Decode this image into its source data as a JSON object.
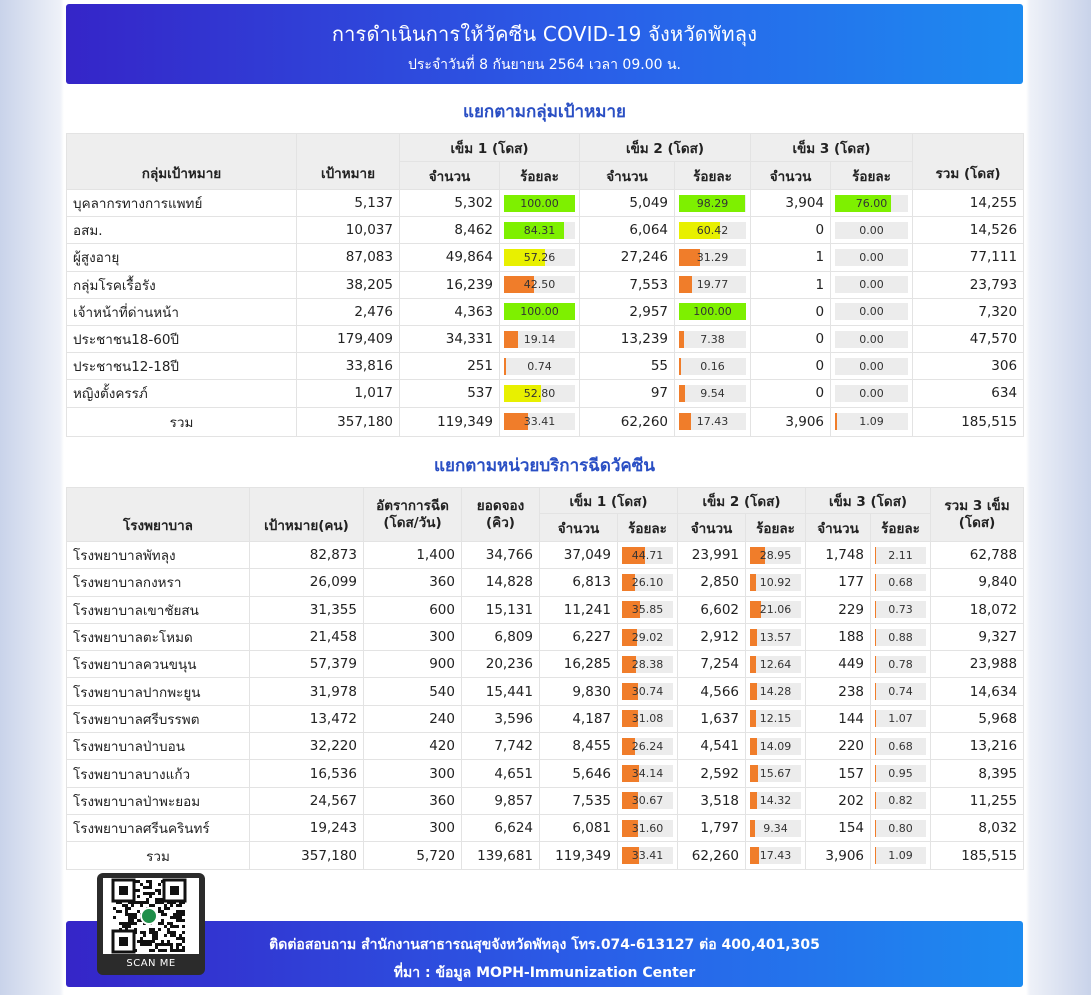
{
  "header": {
    "title": "การดำเนินการให้วัคซีน COVID-19 จังหวัดพัทลุง",
    "subtitle": "ประจำวันที่ 8 กันยายน 2564 เวลา 09.00 น."
  },
  "colors": {
    "green": "#7ef000",
    "yellow": "#e8f000",
    "orange": "#f07d2a"
  },
  "group_section": {
    "title": "แยกตามกลุ่มเป้าหมาย",
    "headers": {
      "group": "กลุ่มเป้าหมาย",
      "target": "เป้าหมาย",
      "dose1": "เข็ม 1 (โดส)",
      "dose2": "เข็ม 2 (โดส)",
      "dose3": "เข็ม 3 (โดส)",
      "count": "จำนวน",
      "percent": "ร้อยละ",
      "total": "รวม (โดส)"
    },
    "rows": [
      {
        "name": "บุคลากรทางการแพทย์",
        "target": "5,137",
        "d1": "5,302",
        "p1": 100.0,
        "d2": "5,049",
        "p2": 98.29,
        "d3": "3,904",
        "p3": 76.0,
        "total": "14,255"
      },
      {
        "name": "อสม.",
        "target": "10,037",
        "d1": "8,462",
        "p1": 84.31,
        "d2": "6,064",
        "p2": 60.42,
        "d3": "0",
        "p3": 0.0,
        "total": "14,526"
      },
      {
        "name": "ผู้สูงอายุ",
        "target": "87,083",
        "d1": "49,864",
        "p1": 57.26,
        "d2": "27,246",
        "p2": 31.29,
        "d3": "1",
        "p3": 0.0,
        "total": "77,111"
      },
      {
        "name": "กลุ่มโรคเรื้อรัง",
        "target": "38,205",
        "d1": "16,239",
        "p1": 42.5,
        "d2": "7,553",
        "p2": 19.77,
        "d3": "1",
        "p3": 0.0,
        "total": "23,793"
      },
      {
        "name": "เจ้าหน้าที่ด่านหน้า",
        "target": "2,476",
        "d1": "4,363",
        "p1": 100.0,
        "d2": "2,957",
        "p2": 100.0,
        "d3": "0",
        "p3": 0.0,
        "total": "7,320"
      },
      {
        "name": "ประชาชน18-60ปี",
        "target": "179,409",
        "d1": "34,331",
        "p1": 19.14,
        "d2": "13,239",
        "p2": 7.38,
        "d3": "0",
        "p3": 0.0,
        "total": "47,570"
      },
      {
        "name": "ประชาชน12-18ปี",
        "target": "33,816",
        "d1": "251",
        "p1": 0.74,
        "d2": "55",
        "p2": 0.16,
        "d3": "0",
        "p3": 0.0,
        "total": "306"
      },
      {
        "name": "หญิงตั้งครรภ์",
        "target": "1,017",
        "d1": "537",
        "p1": 52.8,
        "d2": "97",
        "p2": 9.54,
        "d3": "0",
        "p3": 0.0,
        "total": "634"
      }
    ],
    "total_row": {
      "name": "รวม",
      "target": "357,180",
      "d1": "119,349",
      "p1": 33.41,
      "d2": "62,260",
      "p2": 17.43,
      "d3": "3,906",
      "p3": 1.09,
      "total": "185,515"
    }
  },
  "hospital_section": {
    "title": "แยกตามหน่วยบริการฉีดวัคซีน",
    "headers": {
      "hospital": "โรงพยาบาล",
      "target": "เป้าหมาย(คน)",
      "rate": "อัตราการฉีด (โดส/วัน)",
      "booking": "ยอดจอง (คิว)",
      "dose1": "เข็ม 1 (โดส)",
      "dose2": "เข็ม 2 (โดส)",
      "dose3": "เข็ม 3 (โดส)",
      "count": "จำนวน",
      "percent": "ร้อยละ",
      "total": "รวม 3 เข็ม (โดส)"
    },
    "rows": [
      {
        "name": "โรงพยาบาลพัทลุง",
        "target": "82,873",
        "rate": "1,400",
        "booking": "34,766",
        "d1": "37,049",
        "p1": 44.71,
        "d2": "23,991",
        "p2": 28.95,
        "d3": "1,748",
        "p3": 2.11,
        "total": "62,788"
      },
      {
        "name": "โรงพยาบาลกงหรา",
        "target": "26,099",
        "rate": "360",
        "booking": "14,828",
        "d1": "6,813",
        "p1": 26.1,
        "d2": "2,850",
        "p2": 10.92,
        "d3": "177",
        "p3": 0.68,
        "total": "9,840"
      },
      {
        "name": "โรงพยาบาลเขาชัยสน",
        "target": "31,355",
        "rate": "600",
        "booking": "15,131",
        "d1": "11,241",
        "p1": 35.85,
        "d2": "6,602",
        "p2": 21.06,
        "d3": "229",
        "p3": 0.73,
        "total": "18,072"
      },
      {
        "name": "โรงพยาบาลตะโหมด",
        "target": "21,458",
        "rate": "300",
        "booking": "6,809",
        "d1": "6,227",
        "p1": 29.02,
        "d2": "2,912",
        "p2": 13.57,
        "d3": "188",
        "p3": 0.88,
        "total": "9,327"
      },
      {
        "name": "โรงพยาบาลควนขนุน",
        "target": "57,379",
        "rate": "900",
        "booking": "20,236",
        "d1": "16,285",
        "p1": 28.38,
        "d2": "7,254",
        "p2": 12.64,
        "d3": "449",
        "p3": 0.78,
        "total": "23,988"
      },
      {
        "name": "โรงพยาบาลปากพะยูน",
        "target": "31,978",
        "rate": "540",
        "booking": "15,441",
        "d1": "9,830",
        "p1": 30.74,
        "d2": "4,566",
        "p2": 14.28,
        "d3": "238",
        "p3": 0.74,
        "total": "14,634"
      },
      {
        "name": "โรงพยาบาลศรีบรรพต",
        "target": "13,472",
        "rate": "240",
        "booking": "3,596",
        "d1": "4,187",
        "p1": 31.08,
        "d2": "1,637",
        "p2": 12.15,
        "d3": "144",
        "p3": 1.07,
        "total": "5,968"
      },
      {
        "name": "โรงพยาบาลป่าบอน",
        "target": "32,220",
        "rate": "420",
        "booking": "7,742",
        "d1": "8,455",
        "p1": 26.24,
        "d2": "4,541",
        "p2": 14.09,
        "d3": "220",
        "p3": 0.68,
        "total": "13,216"
      },
      {
        "name": "โรงพยาบาลบางแก้ว",
        "target": "16,536",
        "rate": "300",
        "booking": "4,651",
        "d1": "5,646",
        "p1": 34.14,
        "d2": "2,592",
        "p2": 15.67,
        "d3": "157",
        "p3": 0.95,
        "total": "8,395"
      },
      {
        "name": "โรงพยาบาลป่าพะยอม",
        "target": "24,567",
        "rate": "360",
        "booking": "9,857",
        "d1": "7,535",
        "p1": 30.67,
        "d2": "3,518",
        "p2": 14.32,
        "d3": "202",
        "p3": 0.82,
        "total": "11,255"
      },
      {
        "name": "โรงพยาบาลศรีนครินทร์",
        "target": "19,243",
        "rate": "300",
        "booking": "6,624",
        "d1": "6,081",
        "p1": 31.6,
        "d2": "1,797",
        "p2": 9.34,
        "d3": "154",
        "p3": 0.8,
        "total": "8,032"
      }
    ],
    "total_row": {
      "name": "รวม",
      "target": "357,180",
      "rate": "5,720",
      "booking": "139,681",
      "d1": "119,349",
      "p1": 33.41,
      "d2": "62,260",
      "p2": 17.43,
      "d3": "3,906",
      "p3": 1.09,
      "total": "185,515"
    }
  },
  "footer": {
    "contact": "ติดต่อสอบถาม สำนักงานสาธารณสุขจังหวัดพัทลุง โทร.074-613127 ต่อ 400,401,305",
    "source": "ที่มา : ข้อมูล MOPH-Immunization Center",
    "qr_label": "SCAN ME"
  }
}
